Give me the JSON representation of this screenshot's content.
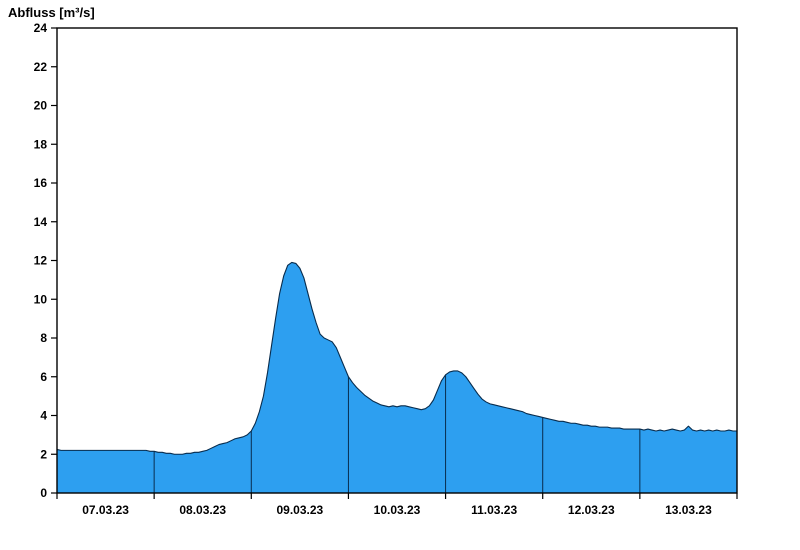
{
  "chart_data": {
    "type": "area",
    "title": "Abfluss [m³/s]",
    "ylabel": "Abfluss [m³/s]",
    "xlabel": "",
    "ylim": [
      0,
      24
    ],
    "ytick_step": 2,
    "x_range_hours": [
      0,
      168
    ],
    "x_tick_labels": [
      "07.03.23",
      "08.03.23",
      "09.03.23",
      "10.03.23",
      "11.03.23",
      "12.03.23",
      "13.03.23"
    ],
    "day_boundary_hours": [
      24,
      48,
      72,
      96,
      120,
      144
    ],
    "hours_step": 1,
    "values": [
      2.25,
      2.2,
      2.2,
      2.2,
      2.2,
      2.2,
      2.2,
      2.2,
      2.2,
      2.2,
      2.2,
      2.2,
      2.2,
      2.2,
      2.2,
      2.2,
      2.2,
      2.2,
      2.2,
      2.2,
      2.2,
      2.2,
      2.2,
      2.15,
      2.15,
      2.1,
      2.1,
      2.05,
      2.05,
      2.0,
      2.0,
      2.0,
      2.05,
      2.05,
      2.1,
      2.1,
      2.15,
      2.2,
      2.3,
      2.4,
      2.5,
      2.55,
      2.6,
      2.7,
      2.8,
      2.85,
      2.9,
      3.0,
      3.2,
      3.6,
      4.2,
      5.0,
      6.2,
      7.6,
      9.0,
      10.3,
      11.2,
      11.75,
      11.9,
      11.85,
      11.6,
      11.1,
      10.3,
      9.5,
      8.8,
      8.2,
      8.0,
      7.9,
      7.8,
      7.5,
      7.0,
      6.5,
      6.0,
      5.7,
      5.45,
      5.25,
      5.05,
      4.9,
      4.75,
      4.65,
      4.55,
      4.5,
      4.45,
      4.5,
      4.45,
      4.5,
      4.5,
      4.45,
      4.4,
      4.35,
      4.3,
      4.35,
      4.5,
      4.8,
      5.3,
      5.8,
      6.1,
      6.25,
      6.3,
      6.3,
      6.2,
      6.0,
      5.7,
      5.4,
      5.1,
      4.85,
      4.7,
      4.6,
      4.55,
      4.5,
      4.45,
      4.4,
      4.35,
      4.3,
      4.25,
      4.2,
      4.1,
      4.05,
      4.0,
      3.95,
      3.9,
      3.85,
      3.8,
      3.75,
      3.7,
      3.7,
      3.65,
      3.6,
      3.6,
      3.55,
      3.5,
      3.5,
      3.45,
      3.45,
      3.4,
      3.4,
      3.4,
      3.35,
      3.35,
      3.35,
      3.3,
      3.3,
      3.3,
      3.3,
      3.3,
      3.25,
      3.3,
      3.25,
      3.2,
      3.25,
      3.2,
      3.25,
      3.3,
      3.25,
      3.2,
      3.25,
      3.45,
      3.25,
      3.2,
      3.25,
      3.2,
      3.25,
      3.2,
      3.25,
      3.2,
      3.2,
      3.25,
      3.2,
      3.2
    ],
    "fill_color": "#2D9FF0",
    "line_color": "#082C4D",
    "separator_color": "#082C4D",
    "axis_color": "#000000",
    "grid": false,
    "legend": null
  }
}
